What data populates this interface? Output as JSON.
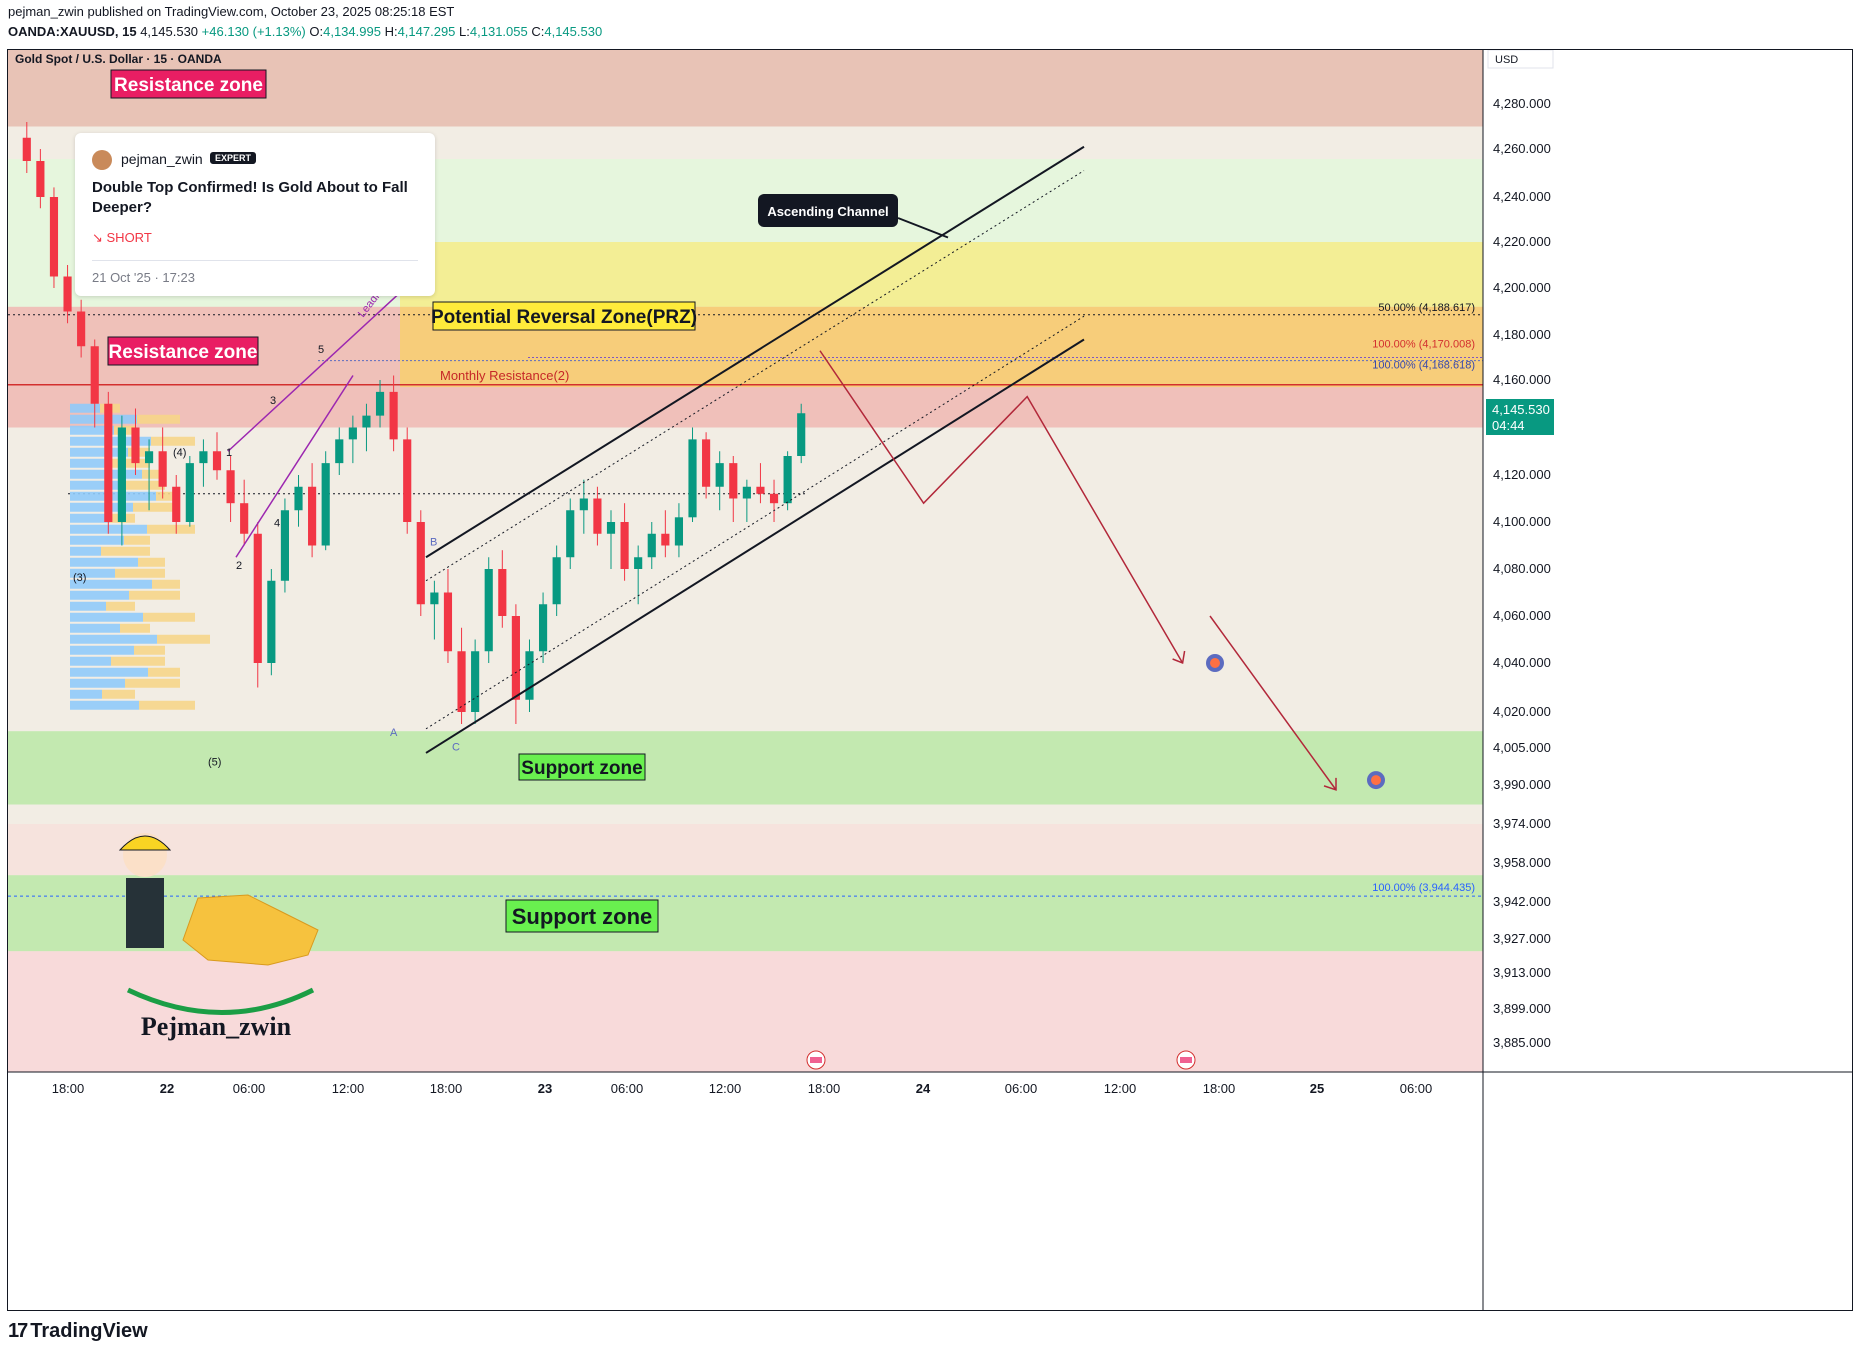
{
  "header": {
    "publisher_line": "pejman_zwin published on TradingView.com, October 23, 2025 08:25:18 EST",
    "publisher": "pejman_zwin",
    "symbol_line": "OANDA:XAUUSD, 15",
    "price": "4,145.530",
    "change": "+46.130 (+1.13%)",
    "open_label": "O:",
    "open": "4,134.995",
    "high_label": "H:",
    "high": "4,147.295",
    "low_label": "L:",
    "low": "4,131.055",
    "close_label": "C:",
    "close": "4,145.530"
  },
  "footer": {
    "brand": "TradingView",
    "logo_mark": "17"
  },
  "idea_card": {
    "author": "pejman_zwin",
    "badge": "EXPERT",
    "title": "Double Top Confirmed! Is Gold About to Fall Deeper?",
    "direction": "↘ SHORT",
    "date": "21 Oct '25 · 17:23"
  },
  "colors": {
    "up": "#089981",
    "down": "#f23645",
    "resistance": "#f2a7a7",
    "support": "#8fd17e",
    "prz": "#f5d36b",
    "forecast": "#b2283a",
    "diagonal": "#9c27b0",
    "label_red": "#e91e63",
    "label_green": "#4caf50"
  },
  "chart_data": {
    "type": "candlestick",
    "title": "Gold Spot / U.S. Dollar · 15 · OANDA",
    "currency": "USD",
    "ylim": [
      3871,
      4298
    ],
    "x_ticks": [
      "18:00",
      "22",
      "06:00",
      "12:00",
      "18:00",
      "23",
      "06:00",
      "12:00",
      "18:00",
      "24",
      "06:00",
      "12:00",
      "18:00",
      "25",
      "06:00"
    ],
    "y_ticks": [
      "4,280.000",
      "4,260.000",
      "4,240.000",
      "4,220.000",
      "4,200.000",
      "4,180.000",
      "4,160.000",
      "4,120.000",
      "4,100.000",
      "4,080.000",
      "4,060.000",
      "4,040.000",
      "4,020.000",
      "4,005.000",
      "3,990.000",
      "3,974.000",
      "3,958.000",
      "3,942.000",
      "3,927.000",
      "3,913.000",
      "3,899.000",
      "3,885.000"
    ],
    "last_price": "4,145.530",
    "countdown": "04:44",
    "zones": [
      {
        "label": "Resistance zone",
        "from": 4270,
        "to": 4298,
        "kind": "resistance"
      },
      {
        "label": "Resistance zone",
        "from": 4140,
        "to": 4192,
        "kind": "resistance"
      },
      {
        "label": "Potential Reversal Zone(PRZ)",
        "from": 4157,
        "to": 4220,
        "kind": "prz"
      },
      {
        "label": "Support zone",
        "from": 3982,
        "to": 4012,
        "kind": "support"
      },
      {
        "label": "Support zone",
        "from": 3922,
        "to": 3953,
        "kind": "support"
      }
    ],
    "levels": [
      {
        "label": "50.00% (4,188.617)",
        "value": 4188.617
      },
      {
        "label": "100.00% (4,170.008)",
        "value": 4170.008
      },
      {
        "label": "100.00% (4,168.618)",
        "value": 4168.618
      },
      {
        "label": "100.00% (3,944.435)",
        "value": 3944.435
      },
      {
        "label": "Monthly Resistance(2)",
        "value": 4158
      }
    ],
    "annotations": [
      "Ascending Channel",
      "Leading Diagonal"
    ],
    "wave_labels": [
      "(3)",
      "(4)",
      "(5)",
      "1",
      "2",
      "3",
      "4",
      "5",
      "A",
      "B",
      "C"
    ],
    "candles": [
      [
        4265,
        4272,
        4250,
        4255
      ],
      [
        4255,
        4260,
        4235,
        4240
      ],
      [
        4240,
        4244,
        4200,
        4205
      ],
      [
        4205,
        4210,
        4185,
        4190
      ],
      [
        4190,
        4195,
        4170,
        4175
      ],
      [
        4175,
        4178,
        4140,
        4150
      ],
      [
        4150,
        4155,
        4095,
        4100
      ],
      [
        4100,
        4145,
        4090,
        4140
      ],
      [
        4140,
        4148,
        4120,
        4125
      ],
      [
        4125,
        4135,
        4105,
        4130
      ],
      [
        4130,
        4140,
        4110,
        4115
      ],
      [
        4115,
        4120,
        4095,
        4100
      ],
      [
        4100,
        4128,
        4098,
        4125
      ],
      [
        4125,
        4135,
        4115,
        4130
      ],
      [
        4130,
        4138,
        4118,
        4122
      ],
      [
        4122,
        4128,
        4100,
        4108
      ],
      [
        4108,
        4118,
        4090,
        4095
      ],
      [
        4095,
        4100,
        4030,
        4040
      ],
      [
        4040,
        4080,
        4035,
        4075
      ],
      [
        4075,
        4110,
        4070,
        4105
      ],
      [
        4105,
        4120,
        4098,
        4115
      ],
      [
        4115,
        4125,
        4085,
        4090
      ],
      [
        4090,
        4130,
        4088,
        4125
      ],
      [
        4125,
        4140,
        4120,
        4135
      ],
      [
        4135,
        4145,
        4125,
        4140
      ],
      [
        4140,
        4150,
        4130,
        4145
      ],
      [
        4145,
        4160,
        4140,
        4155
      ],
      [
        4155,
        4162,
        4130,
        4135
      ],
      [
        4135,
        4140,
        4095,
        4100
      ],
      [
        4100,
        4105,
        4060,
        4065
      ],
      [
        4065,
        4075,
        4050,
        4070
      ],
      [
        4070,
        4080,
        4040,
        4045
      ],
      [
        4045,
        4055,
        4015,
        4020
      ],
      [
        4020,
        4050,
        4015,
        4045
      ],
      [
        4045,
        4085,
        4040,
        4080
      ],
      [
        4080,
        4088,
        4055,
        4060
      ],
      [
        4060,
        4065,
        4015,
        4025
      ],
      [
        4025,
        4050,
        4020,
        4045
      ],
      [
        4045,
        4070,
        4040,
        4065
      ],
      [
        4065,
        4090,
        4060,
        4085
      ],
      [
        4085,
        4110,
        4080,
        4105
      ],
      [
        4105,
        4118,
        4095,
        4110
      ],
      [
        4110,
        4115,
        4090,
        4095
      ],
      [
        4095,
        4105,
        4080,
        4100
      ],
      [
        4100,
        4108,
        4075,
        4080
      ],
      [
        4080,
        4090,
        4065,
        4085
      ],
      [
        4085,
        4100,
        4080,
        4095
      ],
      [
        4095,
        4105,
        4085,
        4090
      ],
      [
        4090,
        4108,
        4085,
        4102
      ],
      [
        4102,
        4140,
        4100,
        4135
      ],
      [
        4135,
        4138,
        4110,
        4115
      ],
      [
        4115,
        4130,
        4105,
        4125
      ],
      [
        4125,
        4128,
        4100,
        4110
      ],
      [
        4110,
        4118,
        4100,
        4115
      ],
      [
        4115,
        4125,
        4108,
        4112
      ],
      [
        4112,
        4118,
        4100,
        4108
      ],
      [
        4108,
        4130,
        4105,
        4128
      ],
      [
        4128,
        4150,
        4125,
        4146
      ]
    ],
    "forecast_path": [
      {
        "t": 0.0,
        "price": 4173
      },
      {
        "t": 0.2,
        "price": 4108
      },
      {
        "t": 0.4,
        "price": 4153
      },
      {
        "t": 0.7,
        "price": 4040
      },
      {
        "t": 1.0,
        "price": 3990
      }
    ],
    "targets": [
      4040,
      3992
    ]
  }
}
